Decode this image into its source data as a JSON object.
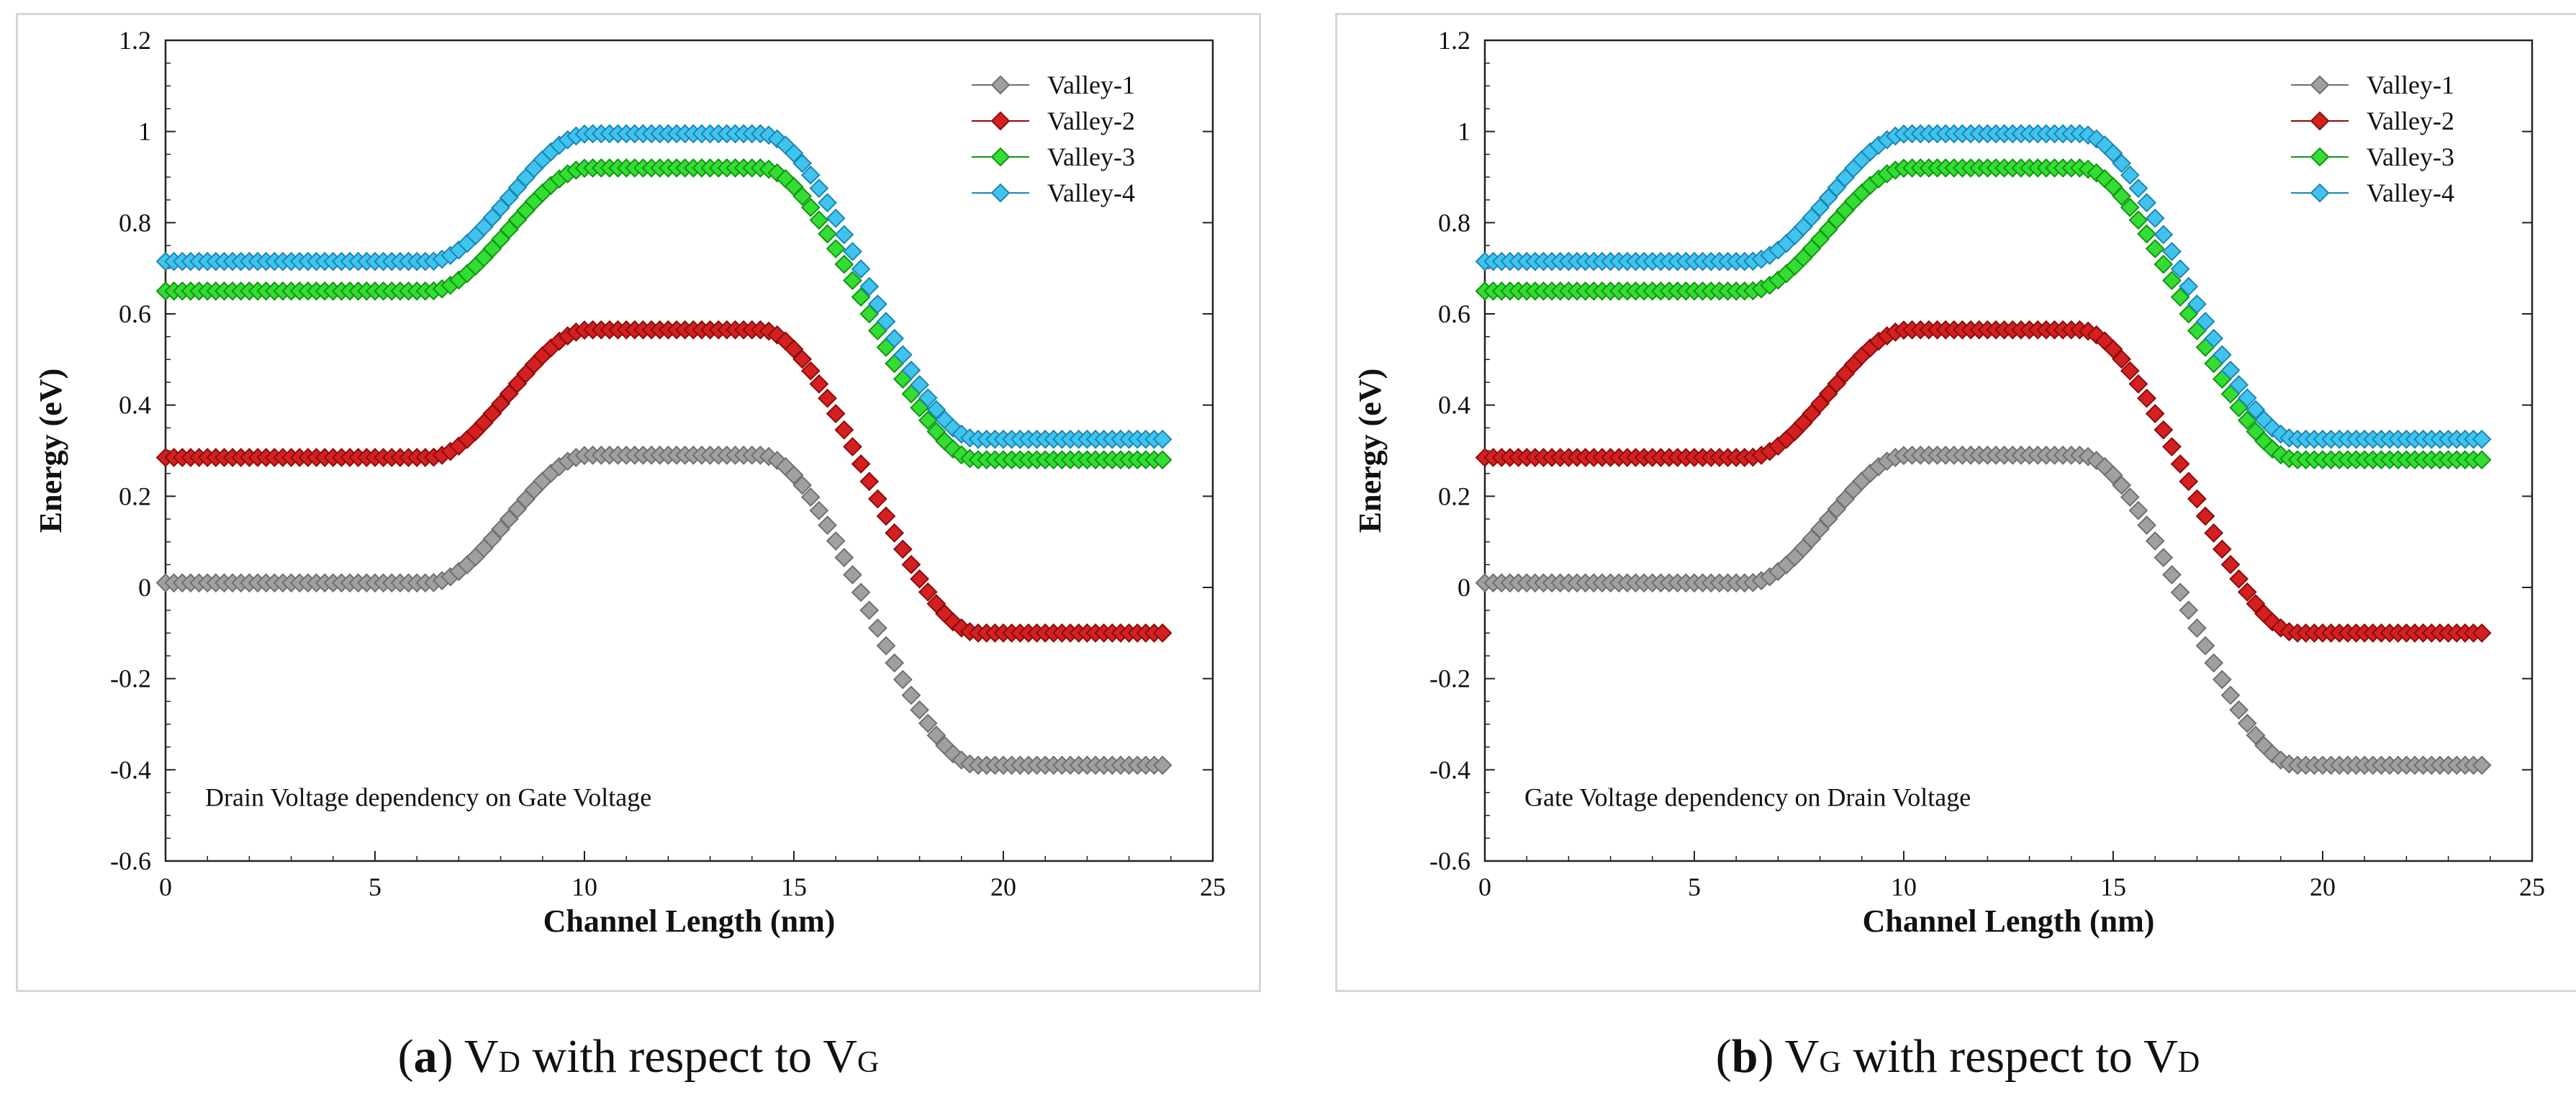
{
  "chart_data": [
    {
      "type": "scatter",
      "panel": "a",
      "xlabel": "Channel Length (nm)",
      "ylabel": "Energy (eV)",
      "xlim": [
        0,
        25
      ],
      "ylim": [
        -0.6,
        1.2
      ],
      "xticks": [
        0,
        5,
        10,
        15,
        20,
        25
      ],
      "yticks": [
        -0.6,
        -0.4,
        -0.2,
        0,
        0.2,
        0.4,
        0.6,
        0.8,
        1,
        1.2
      ],
      "legend_position": "top-right",
      "annotation": "Drain Voltage dependency on Gate Voltage",
      "x_range_points": [
        0,
        23.8
      ],
      "series": [
        {
          "name": "Valley-1",
          "color": "#a0a0a0",
          "edge": "#707070",
          "flat_left": 0.01,
          "peak": 0.29,
          "flat_right": -0.39
        },
        {
          "name": "Valley-2",
          "color": "#d42020",
          "edge": "#8c0c0c",
          "flat_left": 0.285,
          "peak": 0.565,
          "flat_right": -0.1
        },
        {
          "name": "Valley-3",
          "color": "#33dd33",
          "edge": "#129512",
          "flat_left": 0.65,
          "peak": 0.92,
          "flat_right": 0.28
        },
        {
          "name": "Valley-4",
          "color": "#40c4ee",
          "edge": "#1a86b4",
          "flat_left": 0.715,
          "peak": 0.995,
          "flat_right": 0.325
        }
      ]
    },
    {
      "type": "scatter",
      "panel": "b",
      "xlabel": "Channel Length (nm)",
      "ylabel": "Energy (eV)",
      "xlim": [
        0,
        25
      ],
      "ylim": [
        -0.6,
        1.2
      ],
      "xticks": [
        0,
        5,
        10,
        15,
        20,
        25
      ],
      "yticks": [
        -0.6,
        -0.4,
        -0.2,
        0,
        0.2,
        0.4,
        0.6,
        0.8,
        1,
        1.2
      ],
      "legend_position": "top-right",
      "annotation": "Gate Voltage dependency on Drain Voltage",
      "x_range_points": [
        0,
        23.8
      ],
      "series": [
        {
          "name": "Valley-1",
          "color": "#a0a0a0",
          "edge": "#707070",
          "flat_left": 0.01,
          "peak": 0.29,
          "flat_right": -0.39
        },
        {
          "name": "Valley-2",
          "color": "#d42020",
          "edge": "#8c0c0c",
          "flat_left": 0.285,
          "peak": 0.565,
          "flat_right": -0.1
        },
        {
          "name": "Valley-3",
          "color": "#33dd33",
          "edge": "#129512",
          "flat_left": 0.65,
          "peak": 0.92,
          "flat_right": 0.28
        },
        {
          "name": "Valley-4",
          "color": "#40c4ee",
          "edge": "#1a86b4",
          "flat_left": 0.715,
          "peak": 0.995,
          "flat_right": 0.325
        }
      ]
    }
  ],
  "captions": [
    {
      "letter": "a",
      "v1": "V",
      "s1": "D",
      "mid": " with respect to ",
      "v2": "V",
      "s2": "G"
    },
    {
      "letter": "b",
      "v1": "V",
      "s1": "G",
      "mid": " with respect to ",
      "v2": "V",
      "s2": "D"
    }
  ]
}
